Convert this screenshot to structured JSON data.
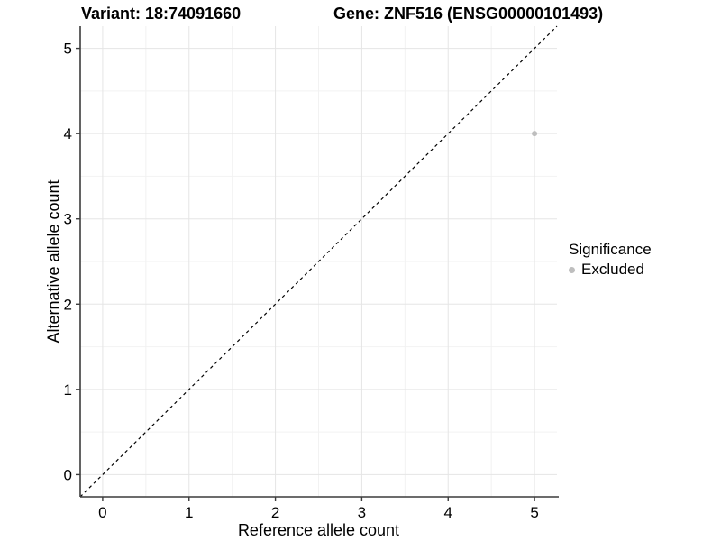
{
  "header": {
    "variant_title": "Variant: 18:74091660",
    "gene_title": "Gene: ZNF516 (ENSG00000101493)"
  },
  "chart_data": {
    "type": "scatter",
    "xlabel": "Reference allele count",
    "ylabel": "Alternative allele count",
    "xticks": [
      "0",
      "1",
      "2",
      "3",
      "4",
      "5"
    ],
    "yticks": [
      "0",
      "1",
      "2",
      "3",
      "4",
      "5"
    ],
    "xlim": [
      -0.26,
      5.26
    ],
    "ylim": [
      -0.26,
      5.26
    ],
    "grid": "major and minor gridlines on white panel, minor at 0.5 steps",
    "series": [
      {
        "name": "Excluded",
        "color": "#bebebe",
        "point_radius": 3,
        "points": [
          {
            "x": 5,
            "y": 4
          }
        ]
      }
    ],
    "reference_line": {
      "kind": "diagonal",
      "equation": "y = x",
      "style": "dashed",
      "color": "#000000"
    },
    "legend": {
      "title": "Significance",
      "position": "right",
      "entries": [
        {
          "label": "Excluded",
          "color": "#bebebe"
        }
      ]
    }
  },
  "colors": {
    "background": "#ffffff",
    "grid_major": "#e5e5e5",
    "grid_minor": "#f2f2f2",
    "axis_line": "#3c3c3c",
    "tick_mark": "#3c3c3c",
    "text": "#000000"
  }
}
